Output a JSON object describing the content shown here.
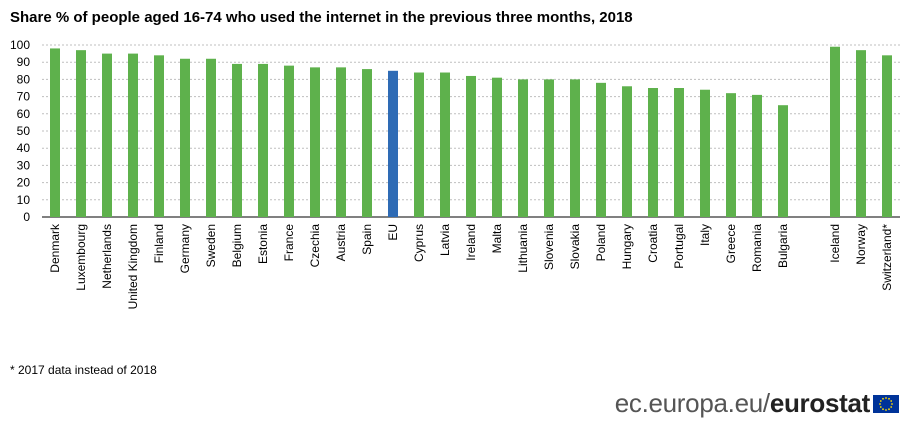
{
  "header": {
    "title": "Share % of people aged 16-74 who used the internet in the previous three months, 2018"
  },
  "footnote": "* 2017 data instead of 2018",
  "brand": {
    "site": "ec.europa.eu/",
    "name": "eurostat"
  },
  "colors": {
    "bar": "#5eb14c",
    "eu_bar": "#2e6bb5",
    "grid": "#bfbfbf",
    "flag": "#003399",
    "star": "#ffdd00"
  },
  "chart_data": {
    "type": "bar",
    "title": "Share % of people aged 16-74 who used the internet in the previous three months, 2018",
    "xlabel": "",
    "ylabel": "",
    "ylim": [
      0,
      100
    ],
    "yticks": [
      0,
      10,
      20,
      30,
      40,
      50,
      60,
      70,
      80,
      90,
      100
    ],
    "grid": true,
    "highlight": "EU",
    "categories": [
      "Denmark",
      "Luxembourg",
      "Netherlands",
      "United Kingdom",
      "Finland",
      "Germany",
      "Sweden",
      "Belgium",
      "Estonia",
      "France",
      "Czechia",
      "Austria",
      "Spain",
      "EU",
      "Cyprus",
      "Latvia",
      "Ireland",
      "Malta",
      "Lithuania",
      "Slovenia",
      "Slovakia",
      "Poland",
      "Hungary",
      "Croatia",
      "Portugal",
      "Italy",
      "Greece",
      "Romania",
      "Bulgaria",
      "",
      "Iceland",
      "Norway",
      "Switzerland*"
    ],
    "values": [
      98,
      97,
      95,
      95,
      94,
      92,
      92,
      89,
      89,
      88,
      87,
      87,
      86,
      85,
      84,
      84,
      82,
      81,
      80,
      80,
      80,
      78,
      76,
      75,
      75,
      74,
      72,
      71,
      65,
      null,
      99,
      97,
      94
    ]
  }
}
